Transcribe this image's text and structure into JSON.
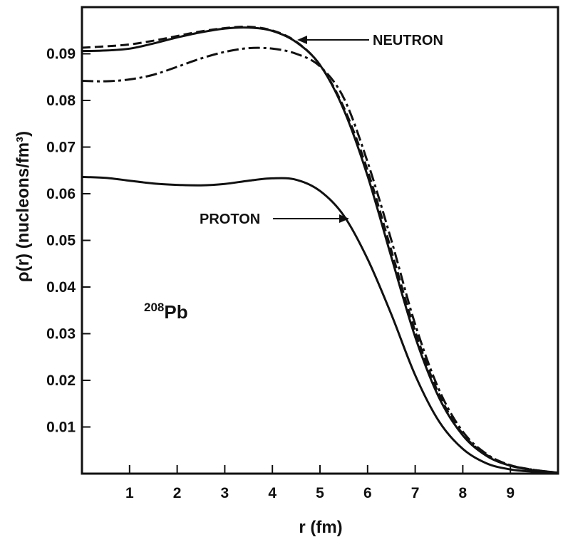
{
  "chart_data": {
    "type": "line",
    "title": "",
    "xlabel": "r (fm)",
    "ylabel": "ρ(r) (nucleons/fm³)",
    "xlim": [
      0,
      10
    ],
    "ylim": [
      0,
      0.1
    ],
    "x_ticks": [
      1,
      2,
      3,
      4,
      5,
      6,
      7,
      8,
      9
    ],
    "x_tick_labels": [
      "1",
      "2",
      "3",
      "4",
      "5",
      "6",
      "7",
      "8",
      "9"
    ],
    "y_ticks": [
      0.01,
      0.02,
      0.03,
      0.04,
      0.05,
      0.06,
      0.07,
      0.08,
      0.09
    ],
    "y_tick_labels": [
      "0.01",
      "0.02",
      "0.03",
      "0.04",
      "0.05",
      "0.06",
      "0.07",
      "0.08",
      "0.09"
    ],
    "grid": false,
    "series": [
      {
        "name": "neutron",
        "style": "solid",
        "x": [
          0,
          0.5,
          1,
          1.5,
          2,
          2.5,
          3,
          3.5,
          4,
          4.5,
          5,
          5.5,
          6,
          6.5,
          7,
          7.5,
          8,
          8.5,
          9,
          9.5,
          10
        ],
        "values": [
          0.0906,
          0.0907,
          0.0911,
          0.0922,
          0.0935,
          0.0946,
          0.0954,
          0.0956,
          0.0949,
          0.0925,
          0.0876,
          0.078,
          0.0638,
          0.0464,
          0.0293,
          0.0163,
          0.0082,
          0.0038,
          0.0017,
          0.0007,
          0.0002
        ]
      },
      {
        "name": "neutron (dashed)",
        "style": "dashed",
        "x": [
          0,
          0.5,
          1,
          1.5,
          2,
          2.5,
          3,
          3.5,
          4,
          4.5,
          5,
          5.5,
          6,
          6.5,
          7,
          7.5,
          8,
          8.5,
          9,
          9.5,
          10
        ],
        "values": [
          0.0913,
          0.0916,
          0.092,
          0.0928,
          0.0938,
          0.0948,
          0.0955,
          0.0958,
          0.095,
          0.0926,
          0.0876,
          0.0785,
          0.065,
          0.0478,
          0.0305,
          0.017,
          0.0085,
          0.004,
          0.0018,
          0.0008,
          0.0002
        ]
      },
      {
        "name": "neutron (dash-dot)",
        "style": "dash-dot",
        "x": [
          0,
          0.5,
          1,
          1.5,
          2,
          2.5,
          3,
          3.5,
          4,
          4.5,
          5,
          5.5,
          6,
          6.5,
          7,
          7.5,
          8,
          8.5,
          9,
          9.5,
          10
        ],
        "values": [
          0.0842,
          0.0841,
          0.0845,
          0.0855,
          0.0872,
          0.089,
          0.0904,
          0.0912,
          0.0911,
          0.09,
          0.0873,
          0.0805,
          0.0668,
          0.05,
          0.032,
          0.018,
          0.009,
          0.0042,
          0.0018,
          0.0008,
          0.0002
        ]
      },
      {
        "name": "proton",
        "style": "solid",
        "x": [
          0,
          0.5,
          1,
          1.5,
          2,
          2.5,
          3,
          3.5,
          4,
          4.5,
          5,
          5.5,
          6,
          6.5,
          7,
          7.5,
          8,
          8.5,
          9,
          9.5,
          10
        ],
        "values": [
          0.0636,
          0.0634,
          0.0628,
          0.0622,
          0.0619,
          0.0618,
          0.0621,
          0.0628,
          0.0633,
          0.063,
          0.0606,
          0.0553,
          0.046,
          0.0341,
          0.0211,
          0.0112,
          0.0053,
          0.0022,
          0.0009,
          0.0004,
          0.0001
        ]
      }
    ],
    "annotations": [
      {
        "text": "NEUTRON",
        "points_to": {
          "x": 4.4,
          "y": 0.0942
        }
      },
      {
        "text": "PROTON",
        "points_to": {
          "x": 5.6,
          "y": 0.0553
        }
      }
    ],
    "nucleus_label": {
      "mass_number": "208",
      "symbol": "Pb"
    }
  }
}
